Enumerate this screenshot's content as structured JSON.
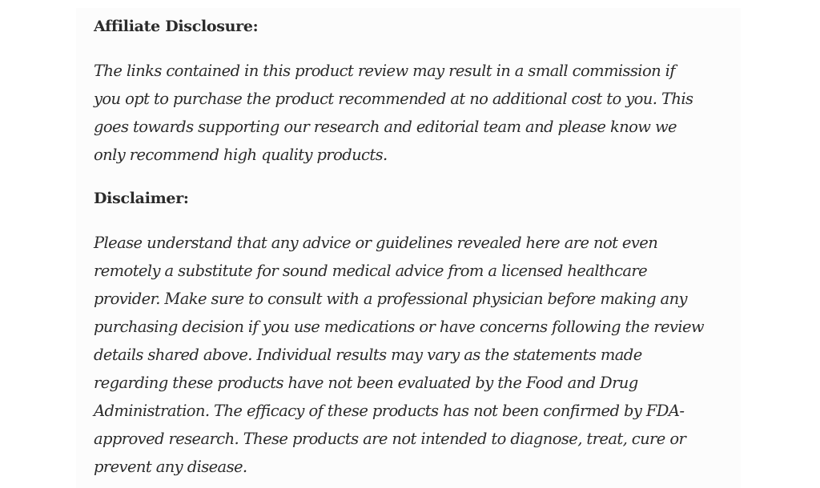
{
  "affiliate": {
    "heading": "Affiliate Disclosure:",
    "lines": [
      "The links contained in this product review may result in a small commission if",
      "you opt to purchase the product recommended at no additional cost to you. This",
      "goes towards supporting our research and editorial team and please know we",
      "only recommend high quality products."
    ]
  },
  "disclaimer": {
    "heading": "Disclaimer:",
    "lines": [
      "Please understand that any advice or guidelines revealed here are not even",
      "remotely a substitute for sound medical advice from a licensed healthcare",
      "provider. Make sure to consult with a professional physician before making any",
      "purchasing decision if you use medications or have concerns following the review",
      "details shared above. Individual results may vary as the statements made",
      "regarding these products have not been evaluated by the Food and Drug",
      "Administration. The efficacy of these products has not been confirmed by FDA-",
      "approved research. These products are not intended to diagnose, treat, cure or",
      "prevent any disease."
    ]
  }
}
